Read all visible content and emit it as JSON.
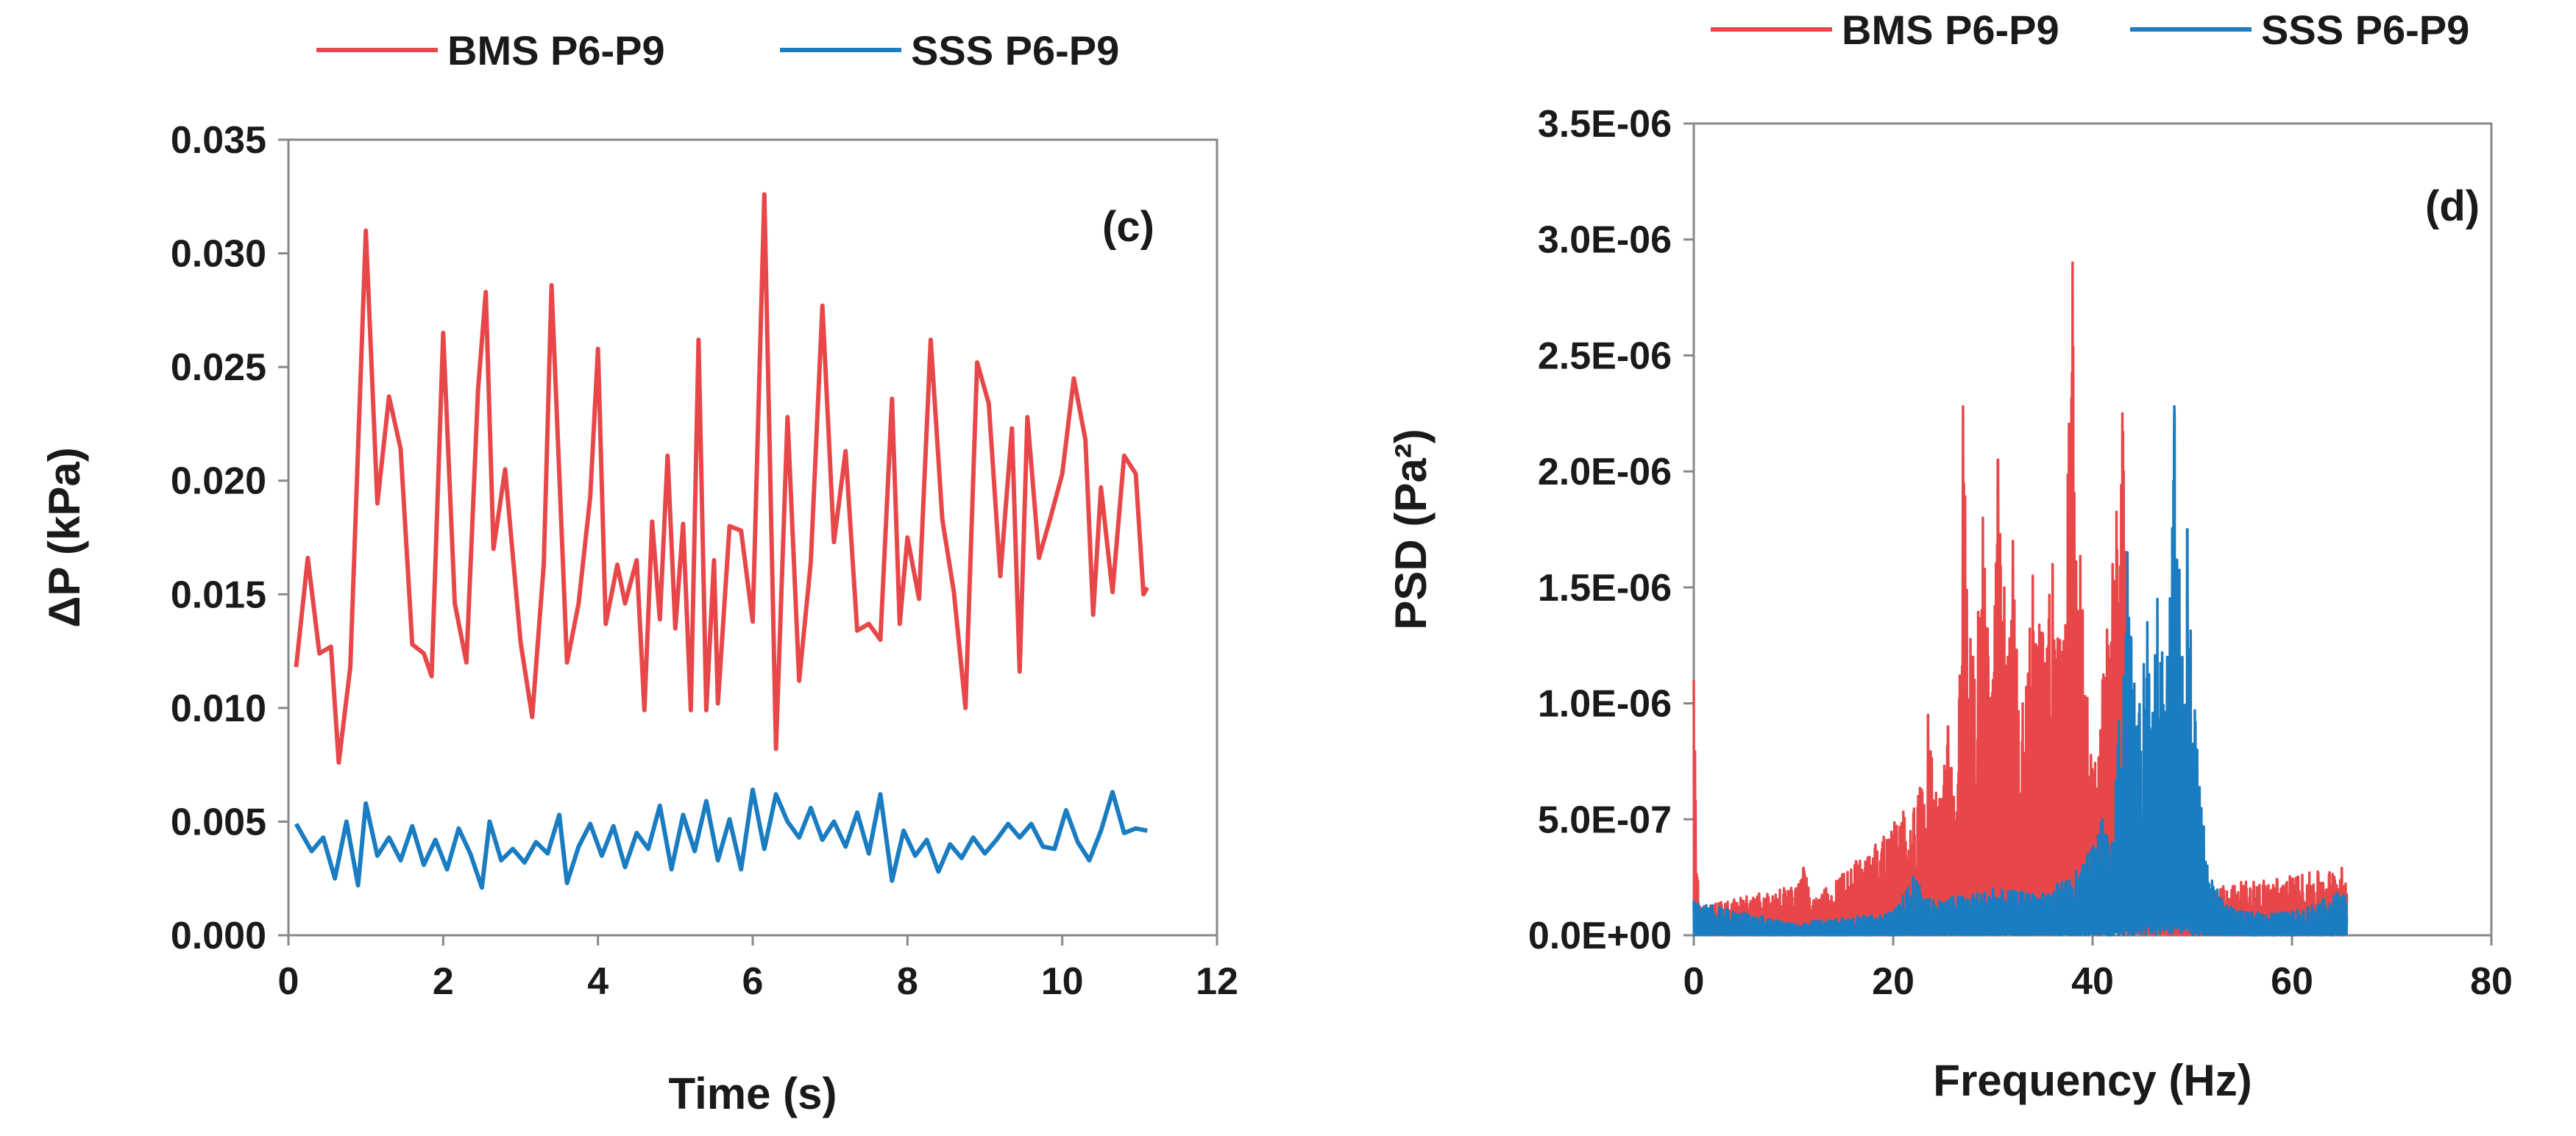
{
  "chart_data": [
    {
      "type": "line",
      "panel_label": "(c)",
      "xlabel": "Time (s)",
      "ylabel": "ΔP (kPa)",
      "xlim": [
        0,
        12
      ],
      "ylim": [
        0,
        0.035
      ],
      "xticks": [
        0,
        2,
        4,
        6,
        8,
        10,
        12
      ],
      "yticks": [
        0.0,
        0.005,
        0.01,
        0.015,
        0.02,
        0.025,
        0.03,
        0.035
      ],
      "xtick_labels": [
        "0",
        "2",
        "4",
        "6",
        "8",
        "10",
        "12"
      ],
      "ytick_labels": [
        "0.000",
        "0.005",
        "0.010",
        "0.015",
        "0.020",
        "0.025",
        "0.030",
        "0.035"
      ],
      "legend": "top",
      "series": [
        {
          "name": "BMS P6-P9",
          "color": "#E8474A",
          "x": [
            0.1,
            0.25,
            0.4,
            0.55,
            0.65,
            0.8,
            1.0,
            1.15,
            1.3,
            1.45,
            1.6,
            1.75,
            1.85,
            2.0,
            2.15,
            2.3,
            2.45,
            2.55,
            2.65,
            2.8,
            3.0,
            3.15,
            3.3,
            3.4,
            3.6,
            3.75,
            3.9,
            4.0,
            4.1,
            4.25,
            4.35,
            4.5,
            4.6,
            4.7,
            4.8,
            4.9,
            5.0,
            5.1,
            5.2,
            5.3,
            5.4,
            5.5,
            5.55,
            5.7,
            5.85,
            6.0,
            6.15,
            6.3,
            6.45,
            6.6,
            6.75,
            6.9,
            7.05,
            7.2,
            7.35,
            7.5,
            7.65,
            7.8,
            7.9,
            8.0,
            8.15,
            8.3,
            8.45,
            8.6,
            8.75,
            8.9,
            9.05,
            9.2,
            9.35,
            9.45,
            9.55,
            9.7,
            9.85,
            10.0,
            10.15,
            10.3,
            10.4,
            10.5,
            10.65,
            10.8,
            10.95,
            11.05,
            11.1
          ],
          "values": [
            0.0118,
            0.0166,
            0.0124,
            0.0127,
            0.0076,
            0.0118,
            0.031,
            0.019,
            0.0237,
            0.0214,
            0.0128,
            0.0124,
            0.0114,
            0.0265,
            0.0146,
            0.012,
            0.024,
            0.0283,
            0.017,
            0.0205,
            0.0129,
            0.0096,
            0.0163,
            0.0286,
            0.012,
            0.0146,
            0.0193,
            0.0258,
            0.0137,
            0.0163,
            0.0146,
            0.0165,
            0.0099,
            0.0182,
            0.0139,
            0.0211,
            0.0135,
            0.0181,
            0.0099,
            0.0262,
            0.0099,
            0.0165,
            0.0102,
            0.018,
            0.0178,
            0.0138,
            0.0326,
            0.0082,
            0.0228,
            0.0112,
            0.0164,
            0.0277,
            0.0173,
            0.0213,
            0.0134,
            0.0137,
            0.013,
            0.0236,
            0.0137,
            0.0175,
            0.0148,
            0.0262,
            0.0183,
            0.0151,
            0.01,
            0.0252,
            0.0234,
            0.0158,
            0.0223,
            0.0116,
            0.0228,
            0.0166,
            0.0184,
            0.0203,
            0.0245,
            0.0218,
            0.0141,
            0.0197,
            0.0151,
            0.0211,
            0.0203,
            0.015,
            0.0153
          ]
        },
        {
          "name": "SSS P6-P9",
          "color": "#1A7CC1",
          "x": [
            0.1,
            0.3,
            0.45,
            0.6,
            0.75,
            0.9,
            1.0,
            1.15,
            1.3,
            1.45,
            1.6,
            1.75,
            1.9,
            2.05,
            2.2,
            2.35,
            2.5,
            2.6,
            2.75,
            2.9,
            3.05,
            3.2,
            3.35,
            3.5,
            3.6,
            3.75,
            3.9,
            4.05,
            4.2,
            4.35,
            4.5,
            4.65,
            4.8,
            4.95,
            5.1,
            5.25,
            5.4,
            5.55,
            5.7,
            5.85,
            6.0,
            6.15,
            6.3,
            6.45,
            6.6,
            6.75,
            6.9,
            7.05,
            7.2,
            7.35,
            7.5,
            7.65,
            7.8,
            7.95,
            8.1,
            8.25,
            8.4,
            8.55,
            8.7,
            8.85,
            9.0,
            9.15,
            9.3,
            9.45,
            9.6,
            9.75,
            9.9,
            10.05,
            10.2,
            10.35,
            10.5,
            10.65,
            10.8,
            10.95,
            11.1
          ],
          "values": [
            0.0049,
            0.0037,
            0.0043,
            0.0025,
            0.005,
            0.0022,
            0.0058,
            0.0035,
            0.0043,
            0.0033,
            0.0048,
            0.0031,
            0.0042,
            0.0029,
            0.0047,
            0.0036,
            0.0021,
            0.005,
            0.0033,
            0.0038,
            0.0032,
            0.0041,
            0.0036,
            0.0053,
            0.0023,
            0.0039,
            0.0049,
            0.0035,
            0.0048,
            0.003,
            0.0045,
            0.0038,
            0.0057,
            0.0029,
            0.0053,
            0.0037,
            0.0059,
            0.0033,
            0.0051,
            0.0029,
            0.0064,
            0.0038,
            0.0062,
            0.005,
            0.0043,
            0.0056,
            0.0042,
            0.005,
            0.0039,
            0.0054,
            0.0036,
            0.0062,
            0.0024,
            0.0046,
            0.0035,
            0.0042,
            0.0028,
            0.004,
            0.0034,
            0.0043,
            0.0036,
            0.0042,
            0.0049,
            0.0043,
            0.0049,
            0.0039,
            0.0038,
            0.0055,
            0.0041,
            0.0033,
            0.0046,
            0.0063,
            0.0045,
            0.0047,
            0.0046
          ]
        }
      ]
    },
    {
      "type": "line",
      "panel_label": "(d)",
      "xlabel": "Frequency (Hz)",
      "ylabel": "PSD (Pa²)",
      "xlim": [
        0,
        80
      ],
      "ylim": [
        0,
        3.5e-06
      ],
      "xticks": [
        0,
        20,
        40,
        60,
        80
      ],
      "yticks": [
        0,
        5e-07,
        1e-06,
        1.5e-06,
        2e-06,
        2.5e-06,
        3e-06,
        3.5e-06
      ],
      "xtick_labels": [
        "0",
        "20",
        "40",
        "60",
        "80"
      ],
      "ytick_labels": [
        "0.0E+00",
        "5.0E-07",
        "1.0E-06",
        "1.5E-06",
        "2.0E-06",
        "2.5E-06",
        "3.0E-06",
        "3.5E-06"
      ],
      "legend": "top",
      "series": [
        {
          "name": "BMS P6-P9",
          "color": "#E8474A",
          "peaks": [
            [
              0.0,
              1.1e-06
            ],
            [
              0.5,
              1.2e-07
            ],
            [
              10.5,
              2.2e-07
            ],
            [
              11.0,
              2.9e-07
            ],
            [
              12.0,
              1.5e-07
            ],
            [
              22.5,
              6e-07
            ],
            [
              23.5,
              9.5e-07
            ],
            [
              24.5,
              5.5e-07
            ],
            [
              25.5,
              9e-07
            ],
            [
              26.5,
              6.5e-07
            ],
            [
              27.0,
              2.28e-06
            ],
            [
              28.0,
              1.2e-06
            ],
            [
              29.0,
              1.8e-06
            ],
            [
              30.0,
              1.1e-06
            ],
            [
              30.5,
              2.05e-06
            ],
            [
              31.5,
              1.2e-06
            ],
            [
              32.0,
              1.7e-06
            ],
            [
              33.0,
              1e-06
            ],
            [
              34.0,
              1.55e-06
            ],
            [
              35.0,
              1.3e-06
            ],
            [
              36.0,
              1.6e-06
            ],
            [
              37.0,
              1.2e-06
            ],
            [
              38.0,
              2.9e-06
            ],
            [
              39.0,
              1.4e-06
            ],
            [
              40.0,
              7e-07
            ],
            [
              41.0,
              1.1e-06
            ],
            [
              42.0,
              1.6e-06
            ],
            [
              43.0,
              2.25e-06
            ],
            [
              44.0,
              8e-07
            ],
            [
              45.0,
              3.5e-07
            ],
            [
              50.0,
              2e-07
            ],
            [
              65.0,
              2.9e-07
            ]
          ]
        },
        {
          "name": "SSS P6-P9",
          "color": "#1A7CC1",
          "peaks": [
            [
              0.0,
              1.5e-07
            ],
            [
              10.0,
              5e-08
            ],
            [
              20.0,
              1e-07
            ],
            [
              22.0,
              2.5e-07
            ],
            [
              24.0,
              1.5e-07
            ],
            [
              30.0,
              2e-07
            ],
            [
              35.0,
              1.8e-07
            ],
            [
              39.0,
              3e-07
            ],
            [
              41.0,
              5e-07
            ],
            [
              42.0,
              4e-07
            ],
            [
              43.5,
              1.65e-06
            ],
            [
              44.5,
              9e-07
            ],
            [
              45.5,
              1.35e-06
            ],
            [
              46.5,
              1.45e-06
            ],
            [
              47.5,
              1.2e-06
            ],
            [
              48.2,
              2.28e-06
            ],
            [
              49.0,
              1.2e-06
            ],
            [
              49.5,
              1.75e-06
            ],
            [
              50.5,
              8e-07
            ],
            [
              51.5,
              3e-07
            ],
            [
              53.0,
              1.5e-07
            ],
            [
              55.0,
              1e-07
            ],
            [
              60.0,
              1e-07
            ],
            [
              64.5,
              1.8e-07
            ]
          ]
        }
      ]
    }
  ]
}
